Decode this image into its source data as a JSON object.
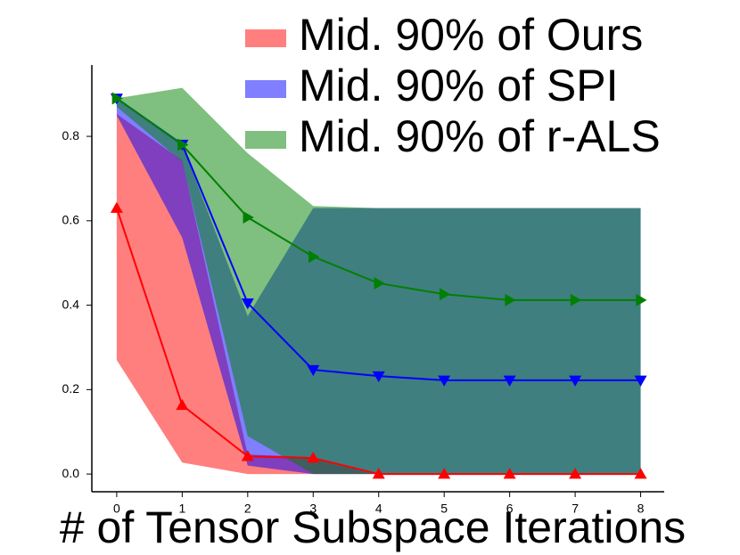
{
  "chart_data": {
    "type": "line",
    "xlabel": "# of Tensor Subspace Iterations",
    "x": [
      0,
      1,
      2,
      3,
      4,
      5,
      6,
      7,
      8
    ],
    "xlim": [
      -0.38,
      8.36
    ],
    "xticks": [
      0,
      1,
      2,
      3,
      4,
      5,
      6,
      7,
      8
    ],
    "ylim": [
      -0.042,
      0.969
    ],
    "yticks": [
      {
        "value": 0,
        "label": "0.0"
      },
      {
        "value": 0.2,
        "label": "0.2"
      },
      {
        "value": 0.4,
        "label": "0.4"
      },
      {
        "value": 0.6,
        "label": "0.6"
      },
      {
        "value": 0.8,
        "label": "0.8"
      }
    ],
    "legend": "upper right",
    "series": [
      {
        "name": "Mid. 90% of Ours",
        "color": "#ff0000",
        "marker": "^",
        "values": [
          0.63,
          0.163,
          0.042,
          0.038,
          0,
          0,
          0,
          0,
          0
        ],
        "upper": [
          0.853,
          0.743,
          0.046,
          0.04,
          0,
          0,
          0,
          0,
          0
        ],
        "lower": [
          0.27,
          0.027,
          0,
          0,
          0,
          0,
          0,
          0,
          0
        ]
      },
      {
        "name": "Mid. 90% of SPI",
        "color": "#0000ff",
        "marker": "v",
        "values": [
          0.89,
          0.781,
          0.405,
          0.247,
          0.232,
          0.222,
          0.222,
          0.222,
          0.222
        ],
        "upper": [
          0.89,
          0.78,
          0.374,
          0.63,
          0.63,
          0.63,
          0.63,
          0.63,
          0.63
        ],
        "lower": [
          0.85,
          0.56,
          0.02,
          0,
          0,
          0,
          0,
          0,
          0
        ]
      },
      {
        "name": "Mid. 90% of r-ALS",
        "color": "#008000",
        "marker": ">",
        "values": [
          0.89,
          0.78,
          0.608,
          0.515,
          0.452,
          0.426,
          0.412,
          0.412,
          0.412
        ],
        "upper": [
          0.89,
          0.915,
          0.76,
          0.635,
          0.63,
          0.63,
          0.63,
          0.63,
          0.63
        ],
        "lower": [
          0.87,
          0.74,
          0.09,
          0,
          0,
          0,
          0,
          0,
          0
        ]
      }
    ]
  }
}
